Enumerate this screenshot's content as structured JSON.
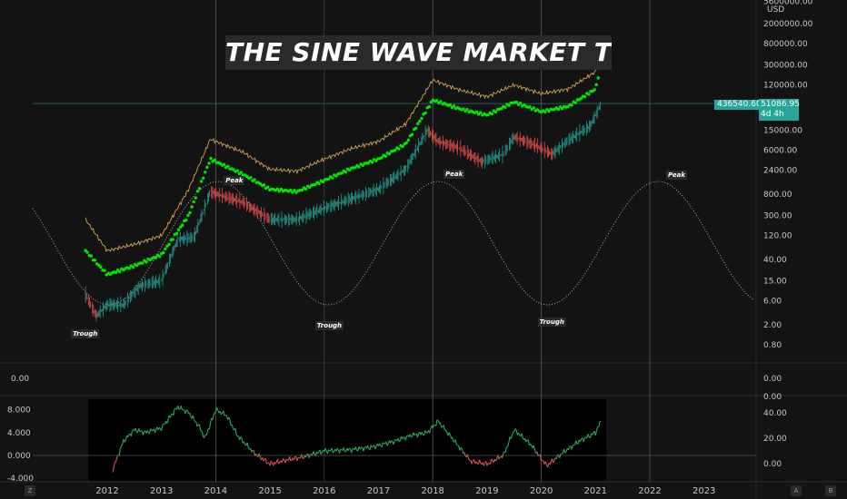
{
  "title": "THE SINE WAVE MARKET THEORY",
  "currency": "USD",
  "badges": {
    "percent": "436540.60%",
    "price": "51086.95",
    "countdown": "4d 4h"
  },
  "annotations": [
    {
      "label": "Trough",
      "year": 2011.5
    },
    {
      "label": "Peak",
      "year": 2014.05
    },
    {
      "label": "Trough",
      "year": 2016.0
    },
    {
      "label": "Peak",
      "year": 2018.1
    },
    {
      "label": "Trough",
      "year": 2020.1
    },
    {
      "label": "Peak",
      "year": 2022.2
    }
  ],
  "controls": {
    "left": "Z",
    "auto": "A",
    "right": "B"
  },
  "colors": {
    "background": "#131313",
    "ma_band": "#00e600",
    "upper_band": "#d4a24c",
    "up": "#26a69a",
    "down": "#ef5350",
    "oscillator_up": "#2ea85a",
    "oscillator_down": "#e05050",
    "badge": "#26a69a"
  },
  "chart_data": [
    {
      "type": "line",
      "title": "THE SINE WAVE MARKET THEORY",
      "scale": "log",
      "y_ticks": [
        "5600000.00",
        "2000000.00",
        "800000.00",
        "300000.00",
        "120000.00",
        "51086.95",
        "15000.00",
        "6000.00",
        "2400.00",
        "800.00",
        "300.00",
        "120.00",
        "40.00",
        "15.00",
        "6.00",
        "2.00",
        "0.80"
      ],
      "x_ticks": [
        "2012",
        "2013",
        "2014",
        "2015",
        "2016",
        "2017",
        "2018",
        "2019",
        "2020",
        "2021",
        "2022",
        "2023"
      ],
      "series": [
        {
          "x": [
            2011.6,
            2011.8,
            2012.0,
            2012.3,
            2012.6,
            2013.0,
            2013.3,
            2013.6,
            2013.9,
            2014.1,
            2014.5,
            2015.0,
            2015.5,
            2016.0,
            2016.5,
            2017.0,
            2017.5,
            2017.9,
            2018.1,
            2018.5,
            2018.9,
            2019.3,
            2019.5,
            2019.9,
            2020.2,
            2020.5,
            2020.9,
            2021.1
          ],
          "y": [
            8,
            3,
            5,
            5,
            12,
            15,
            100,
            110,
            900,
            750,
            550,
            250,
            250,
            420,
            650,
            1000,
            2500,
            15000,
            9000,
            6500,
            3500,
            5000,
            11000,
            7500,
            5000,
            9500,
            18000,
            50000
          ]
        },
        {
          "x": [
            2011.6,
            2012.0,
            2012.5,
            2013.0,
            2013.5,
            2013.9,
            2014.5,
            2015.0,
            2015.5,
            2016.0,
            2016.5,
            2017.0,
            2017.5,
            2018.0,
            2018.5,
            2019.0,
            2019.5,
            2020.0,
            2020.5,
            2021.0,
            2021.1
          ],
          "y": [
            60,
            20,
            30,
            50,
            300,
            4000,
            2000,
            1000,
            900,
            1500,
            2600,
            4000,
            8000,
            60000,
            40000,
            30000,
            55000,
            35000,
            45000,
            100000,
            300000
          ]
        },
        {
          "x": [
            2011.6,
            2012.0,
            2012.5,
            2013.0,
            2013.5,
            2013.9,
            2014.5,
            2015.0,
            2015.5,
            2016.0,
            2016.5,
            2017.0,
            2017.5,
            2018.0,
            2018.5,
            2019.0,
            2019.5,
            2020.0,
            2020.5,
            2021.0,
            2021.1
          ],
          "y": [
            250,
            60,
            80,
            120,
            1000,
            10000,
            5500,
            2500,
            2300,
            4000,
            6500,
            9000,
            20000,
            150000,
            95000,
            70000,
            120000,
            80000,
            100000,
            220000,
            550000
          ]
        }
      ]
    },
    {
      "type": "line",
      "y_ticks": [
        "8.000",
        "4.000",
        "0.000",
        "-4.000"
      ],
      "right_ticks": [
        "40.00",
        "20.00",
        "0.00"
      ],
      "x": [
        2012.1,
        2012.3,
        2012.5,
        2012.7,
        2013.0,
        2013.3,
        2013.5,
        2013.7,
        2013.8,
        2014.0,
        2014.2,
        2014.4,
        2014.7,
        2015.0,
        2015.3,
        2015.6,
        2016.0,
        2016.5,
        2016.9,
        2017.3,
        2017.6,
        2017.9,
        2018.1,
        2018.4,
        2018.7,
        2019.0,
        2019.3,
        2019.5,
        2019.8,
        2020.1,
        2020.4,
        2020.7,
        2021.0,
        2021.1
      ],
      "values": [
        -2.5,
        2.5,
        4.5,
        4.0,
        4.8,
        8.5,
        7.5,
        5.0,
        3.0,
        8.0,
        7.0,
        3.5,
        0.5,
        -1.5,
        -0.8,
        -0.3,
        0.8,
        1.0,
        1.5,
        2.5,
        3.5,
        4.0,
        6.0,
        2.5,
        -1.0,
        -1.5,
        0.0,
        4.5,
        2.0,
        -1.8,
        0.5,
        2.5,
        4.0,
        6.0
      ]
    }
  ]
}
